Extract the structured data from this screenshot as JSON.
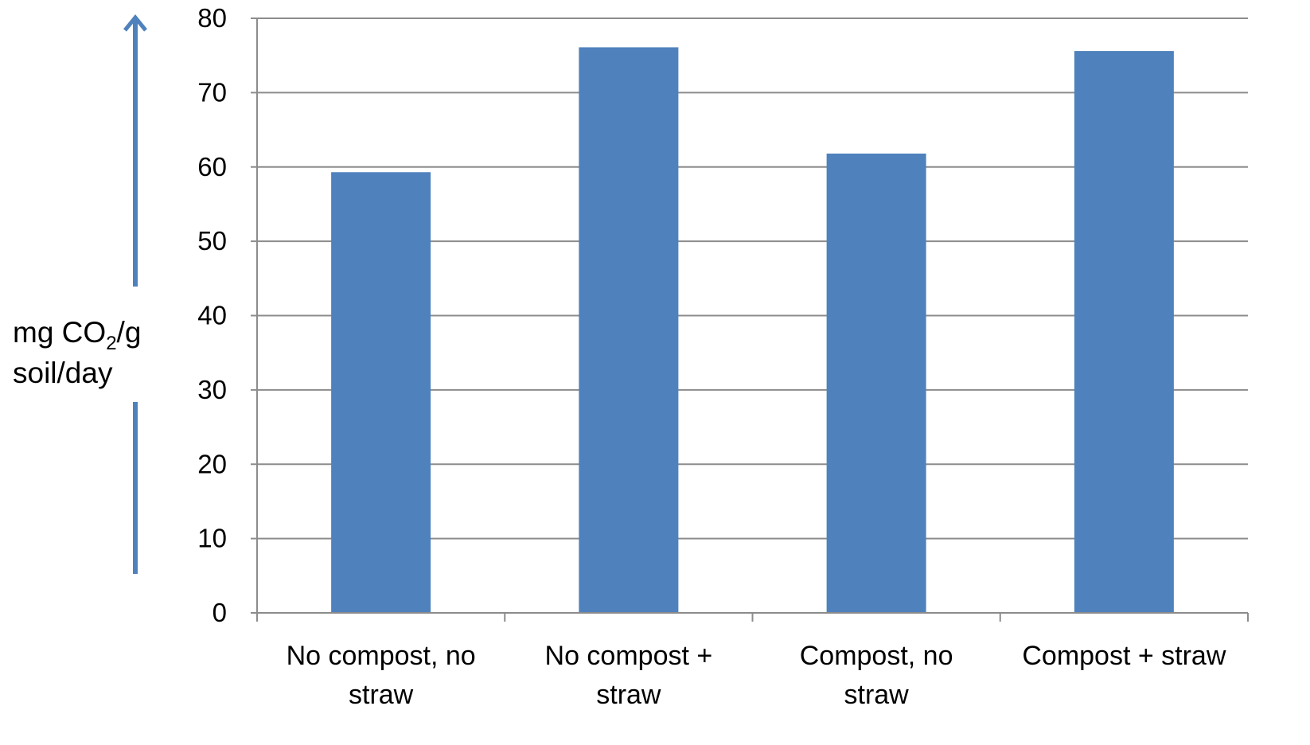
{
  "chart_data": {
    "type": "bar",
    "categories": [
      [
        "No compost, no",
        "straw"
      ],
      [
        "No compost +",
        "straw"
      ],
      [
        "Compost, no",
        "straw"
      ],
      [
        "Compost + straw"
      ]
    ],
    "values": [
      59.3,
      76.1,
      61.8,
      75.6
    ],
    "ylim": [
      0,
      80
    ],
    "yticks": [
      0,
      10,
      20,
      30,
      40,
      50,
      60,
      70,
      80
    ],
    "ylabel": {
      "line1_prefix": "mg CO",
      "line1_sub": "2",
      "line1_suffix": "/g",
      "line2": "soil/day"
    },
    "title": "",
    "xlabel": "",
    "grid": true,
    "legend": "none",
    "colors": {
      "bar": "#4f81bd",
      "grid": "#8c8c8c",
      "axis": "#8c8c8c",
      "arrow": "#4f81bd"
    }
  }
}
